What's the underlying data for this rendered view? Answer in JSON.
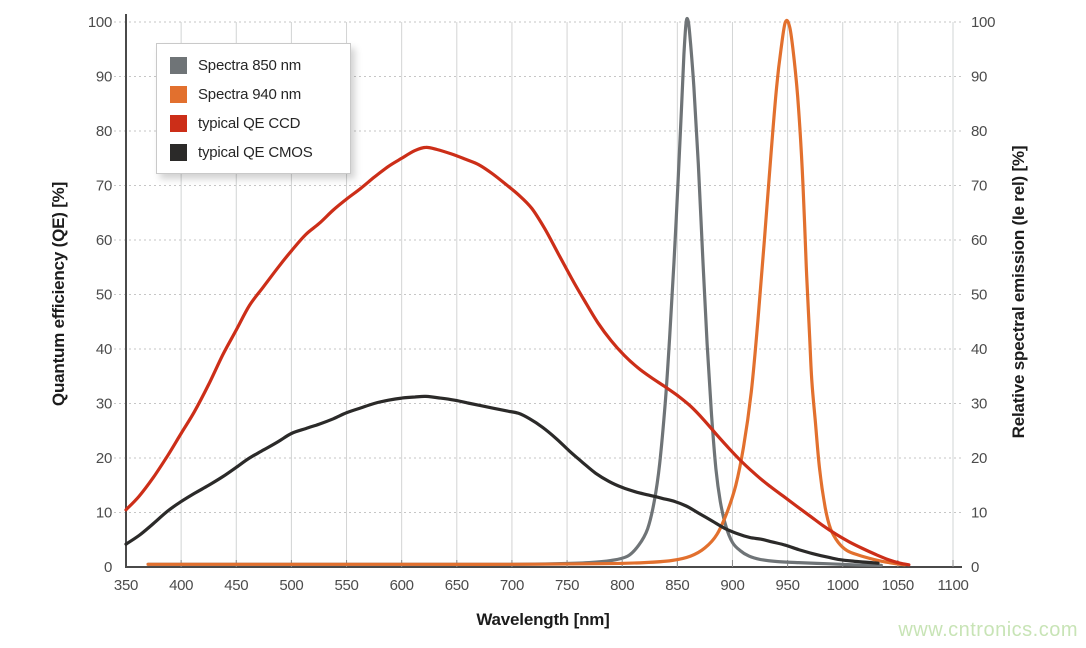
{
  "watermark": "www.cntronics.com",
  "colors": {
    "grid_vertical": "#d2d4d4",
    "grid_horizontal": "#c6c6c6",
    "axis_line": "#4a4a4a",
    "tick_text": "#4c4c4c",
    "spectra_850": "#6f7477",
    "spectra_940": "#e2702e",
    "qe_ccd": "#cc2e18",
    "qe_cmos": "#2b2a29",
    "watermark_green": "#c8e4b6"
  },
  "axes": {
    "x": {
      "title": "Wavelength [nm]",
      "ticks": [
        350,
        400,
        450,
        500,
        550,
        600,
        650,
        700,
        750,
        800,
        850,
        900,
        950,
        1000,
        1050,
        1100
      ]
    },
    "y_left": {
      "title": "Quantum efficiency (QE) [%]",
      "ticks": [
        0,
        10,
        20,
        30,
        40,
        50,
        60,
        70,
        80,
        90,
        100
      ]
    },
    "y_right": {
      "title": "Relative spectral emission (Ie rel) [%]",
      "ticks": [
        0,
        10,
        20,
        30,
        40,
        50,
        60,
        70,
        80,
        90,
        100
      ]
    }
  },
  "legend": {
    "items": [
      {
        "label": "Spectra 850 nm",
        "color": "#6f7477"
      },
      {
        "label": "Spectra 940 nm",
        "color": "#e2702e"
      },
      {
        "label": "typical QE CCD",
        "color": "#cc2e18"
      },
      {
        "label": "typical QE CMOS",
        "color": "#2b2a29"
      }
    ]
  },
  "chart_data": {
    "type": "line",
    "title": "",
    "xlabel": "Wavelength [nm]",
    "ylabel_left": "Quantum efficiency (QE) [%]",
    "ylabel_right": "Relative spectral emission (Ie rel) [%]",
    "xlim": [
      350,
      1100
    ],
    "ylim": [
      0,
      100
    ],
    "grid": true,
    "legend_position": "top-left",
    "series": [
      {
        "name": "Spectra 850 nm",
        "color": "#6f7477",
        "axis": "right",
        "peak_nm": 857,
        "points": [
          [
            370,
            0.5
          ],
          [
            500,
            0.5
          ],
          [
            620,
            0.5
          ],
          [
            700,
            0.5
          ],
          [
            740,
            0.6
          ],
          [
            770,
            0.8
          ],
          [
            790,
            1.2
          ],
          [
            805,
            2
          ],
          [
            815,
            4
          ],
          [
            823,
            7
          ],
          [
            829,
            12
          ],
          [
            834,
            19
          ],
          [
            839,
            30
          ],
          [
            843,
            42
          ],
          [
            847,
            56
          ],
          [
            851,
            72
          ],
          [
            854,
            85
          ],
          [
            856,
            94
          ],
          [
            858,
            100
          ],
          [
            860,
            100
          ],
          [
            862,
            96
          ],
          [
            865,
            88
          ],
          [
            869,
            74
          ],
          [
            873,
            57
          ],
          [
            877,
            41
          ],
          [
            881,
            28
          ],
          [
            885,
            18
          ],
          [
            889,
            12
          ],
          [
            894,
            7.5
          ],
          [
            900,
            4.5
          ],
          [
            907,
            3
          ],
          [
            915,
            2
          ],
          [
            925,
            1.4
          ],
          [
            940,
            1
          ],
          [
            960,
            0.8
          ],
          [
            985,
            0.6
          ],
          [
            1010,
            0.4
          ],
          [
            1035,
            0.3
          ]
        ]
      },
      {
        "name": "Spectra 940 nm",
        "color": "#e2702e",
        "axis": "right",
        "peak_nm": 948,
        "points": [
          [
            370,
            0.5
          ],
          [
            500,
            0.5
          ],
          [
            620,
            0.5
          ],
          [
            700,
            0.5
          ],
          [
            780,
            0.6
          ],
          [
            820,
            0.8
          ],
          [
            845,
            1.2
          ],
          [
            862,
            2
          ],
          [
            875,
            3.5
          ],
          [
            886,
            6
          ],
          [
            895,
            10
          ],
          [
            903,
            15
          ],
          [
            910,
            22
          ],
          [
            917,
            32
          ],
          [
            923,
            45
          ],
          [
            929,
            60
          ],
          [
            935,
            76
          ],
          [
            940,
            88
          ],
          [
            944,
            95
          ],
          [
            948,
            100
          ],
          [
            952,
            99
          ],
          [
            956,
            93
          ],
          [
            960,
            84
          ],
          [
            964,
            70
          ],
          [
            967,
            55
          ],
          [
            970,
            42
          ],
          [
            972,
            34
          ],
          [
            975,
            27
          ],
          [
            979,
            18
          ],
          [
            984,
            11
          ],
          [
            989,
            7
          ],
          [
            996,
            4.5
          ],
          [
            1004,
            3
          ],
          [
            1014,
            2.2
          ],
          [
            1028,
            1.4
          ],
          [
            1042,
            0.8
          ],
          [
            1056,
            0.4
          ]
        ]
      },
      {
        "name": "typical QE CCD",
        "color": "#cc2e18",
        "axis": "left",
        "peak_nm": 622,
        "points": [
          [
            350,
            10.5
          ],
          [
            362,
            13
          ],
          [
            375,
            16.5
          ],
          [
            388,
            20.5
          ],
          [
            400,
            24.5
          ],
          [
            412,
            28.5
          ],
          [
            425,
            33.5
          ],
          [
            438,
            39
          ],
          [
            450,
            43.5
          ],
          [
            462,
            48
          ],
          [
            475,
            51.5
          ],
          [
            488,
            55
          ],
          [
            500,
            58
          ],
          [
            513,
            61
          ],
          [
            525,
            63
          ],
          [
            538,
            65.5
          ],
          [
            550,
            67.5
          ],
          [
            563,
            69.5
          ],
          [
            575,
            71.5
          ],
          [
            588,
            73.5
          ],
          [
            600,
            75
          ],
          [
            612,
            76.4
          ],
          [
            622,
            77
          ],
          [
            632,
            76.6
          ],
          [
            645,
            75.8
          ],
          [
            658,
            74.8
          ],
          [
            670,
            73.8
          ],
          [
            682,
            72.2
          ],
          [
            694,
            70.3
          ],
          [
            706,
            68.3
          ],
          [
            718,
            65.8
          ],
          [
            730,
            62
          ],
          [
            742,
            57.5
          ],
          [
            754,
            53
          ],
          [
            766,
            48.8
          ],
          [
            778,
            44.8
          ],
          [
            790,
            41.5
          ],
          [
            802,
            38.8
          ],
          [
            814,
            36.6
          ],
          [
            826,
            34.8
          ],
          [
            838,
            33.2
          ],
          [
            850,
            31.5
          ],
          [
            862,
            29.5
          ],
          [
            874,
            27
          ],
          [
            886,
            24.2
          ],
          [
            898,
            21.5
          ],
          [
            910,
            19
          ],
          [
            922,
            16.8
          ],
          [
            934,
            14.8
          ],
          [
            946,
            13
          ],
          [
            958,
            11.2
          ],
          [
            970,
            9.4
          ],
          [
            982,
            7.6
          ],
          [
            994,
            6
          ],
          [
            1006,
            4.6
          ],
          [
            1018,
            3.4
          ],
          [
            1030,
            2.3
          ],
          [
            1042,
            1.3
          ],
          [
            1052,
            0.7
          ],
          [
            1060,
            0.4
          ]
        ]
      },
      {
        "name": "typical QE CMOS",
        "color": "#2b2a29",
        "axis": "left",
        "peak_nm": 622,
        "points": [
          [
            350,
            4.2
          ],
          [
            362,
            5.8
          ],
          [
            375,
            8
          ],
          [
            388,
            10.3
          ],
          [
            400,
            12
          ],
          [
            412,
            13.5
          ],
          [
            425,
            15
          ],
          [
            438,
            16.6
          ],
          [
            450,
            18.3
          ],
          [
            462,
            20
          ],
          [
            475,
            21.5
          ],
          [
            488,
            23
          ],
          [
            500,
            24.5
          ],
          [
            513,
            25.4
          ],
          [
            525,
            26.2
          ],
          [
            538,
            27.2
          ],
          [
            550,
            28.3
          ],
          [
            563,
            29.2
          ],
          [
            575,
            30
          ],
          [
            588,
            30.6
          ],
          [
            600,
            31
          ],
          [
            612,
            31.2
          ],
          [
            622,
            31.3
          ],
          [
            635,
            31
          ],
          [
            648,
            30.6
          ],
          [
            660,
            30.1
          ],
          [
            672,
            29.6
          ],
          [
            684,
            29.1
          ],
          [
            696,
            28.6
          ],
          [
            706,
            28.2
          ],
          [
            716,
            27.2
          ],
          [
            728,
            25.6
          ],
          [
            740,
            23.6
          ],
          [
            752,
            21.3
          ],
          [
            764,
            19.2
          ],
          [
            776,
            17.2
          ],
          [
            788,
            15.7
          ],
          [
            800,
            14.6
          ],
          [
            812,
            13.8
          ],
          [
            824,
            13.2
          ],
          [
            836,
            12.6
          ],
          [
            848,
            12
          ],
          [
            858,
            11.2
          ],
          [
            870,
            9.8
          ],
          [
            882,
            8.4
          ],
          [
            894,
            7
          ],
          [
            906,
            6
          ],
          [
            916,
            5.4
          ],
          [
            926,
            5.1
          ],
          [
            936,
            4.6
          ],
          [
            948,
            4
          ],
          [
            960,
            3.2
          ],
          [
            972,
            2.5
          ],
          [
            984,
            1.9
          ],
          [
            996,
            1.4
          ],
          [
            1008,
            1.1
          ],
          [
            1020,
            0.9
          ],
          [
            1032,
            0.7
          ]
        ]
      }
    ]
  }
}
